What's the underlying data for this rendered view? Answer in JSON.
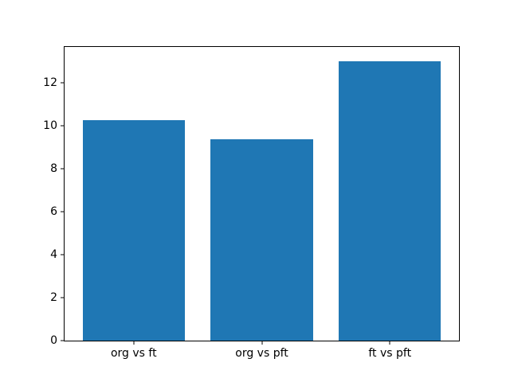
{
  "figure": {
    "background_color": "#ffffff",
    "axis_color": "#000000",
    "tick_label_color": "#000000"
  },
  "chart_data": {
    "type": "bar",
    "categories": [
      "org vs ft",
      "org vs pft",
      "ft vs pft"
    ],
    "values": [
      10.25,
      9.35,
      13.0
    ],
    "title": "",
    "xlabel": "",
    "ylabel": "",
    "ylim": [
      0,
      13.65
    ],
    "yticks": [
      0,
      2,
      4,
      6,
      8,
      10,
      12
    ],
    "xlim": [
      -0.54,
      2.54
    ],
    "bar_width": 0.8,
    "bar_color": "#1f77b4",
    "grid": false,
    "legend_position": "none"
  }
}
